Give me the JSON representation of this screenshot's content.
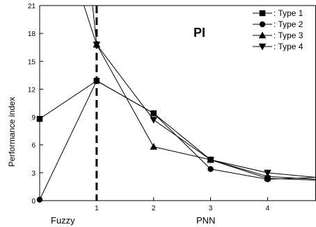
{
  "chart_data": {
    "type": "line",
    "annotation": "PI",
    "ylabel": "Performance index",
    "xlabel_left": "Fuzzy",
    "xlabel_right": "PNN",
    "xlim": [
      0,
      4.85
    ],
    "ylim": [
      0,
      21
    ],
    "x_ticks": [
      1,
      2,
      3,
      4
    ],
    "y_ticks": [
      0,
      3,
      6,
      9,
      12,
      15,
      18,
      21
    ],
    "divider_x": 1,
    "series": [
      {
        "name": ": Type 1",
        "marker": "square",
        "points": [
          [
            0,
            8.8
          ],
          [
            1,
            12.9
          ],
          [
            2,
            9.4
          ],
          [
            3,
            4.4
          ],
          [
            4,
            2.4
          ],
          [
            4.85,
            2.2
          ]
        ]
      },
      {
        "name": ": Type 2",
        "marker": "circle",
        "points": [
          [
            0,
            0.1
          ],
          [
            1,
            12.9
          ],
          [
            2,
            9.4
          ],
          [
            3,
            3.4
          ],
          [
            4,
            2.3
          ],
          [
            4.85,
            2.5
          ]
        ]
      },
      {
        "name": ": Type 3",
        "marker": "triangle-up",
        "points": [
          [
            0.75,
            21.5
          ],
          [
            1,
            16.8
          ],
          [
            2,
            5.8
          ],
          [
            3,
            4.4
          ],
          [
            4,
            2.6
          ],
          [
            4.85,
            2.3
          ]
        ]
      },
      {
        "name": ": Type 4",
        "marker": "triangle-down",
        "points": [
          [
            0.92,
            21.5
          ],
          [
            1,
            16.8
          ],
          [
            2,
            8.7
          ],
          [
            3,
            4.4
          ],
          [
            4,
            3.0
          ],
          [
            4.85,
            2.5
          ]
        ]
      }
    ]
  }
}
